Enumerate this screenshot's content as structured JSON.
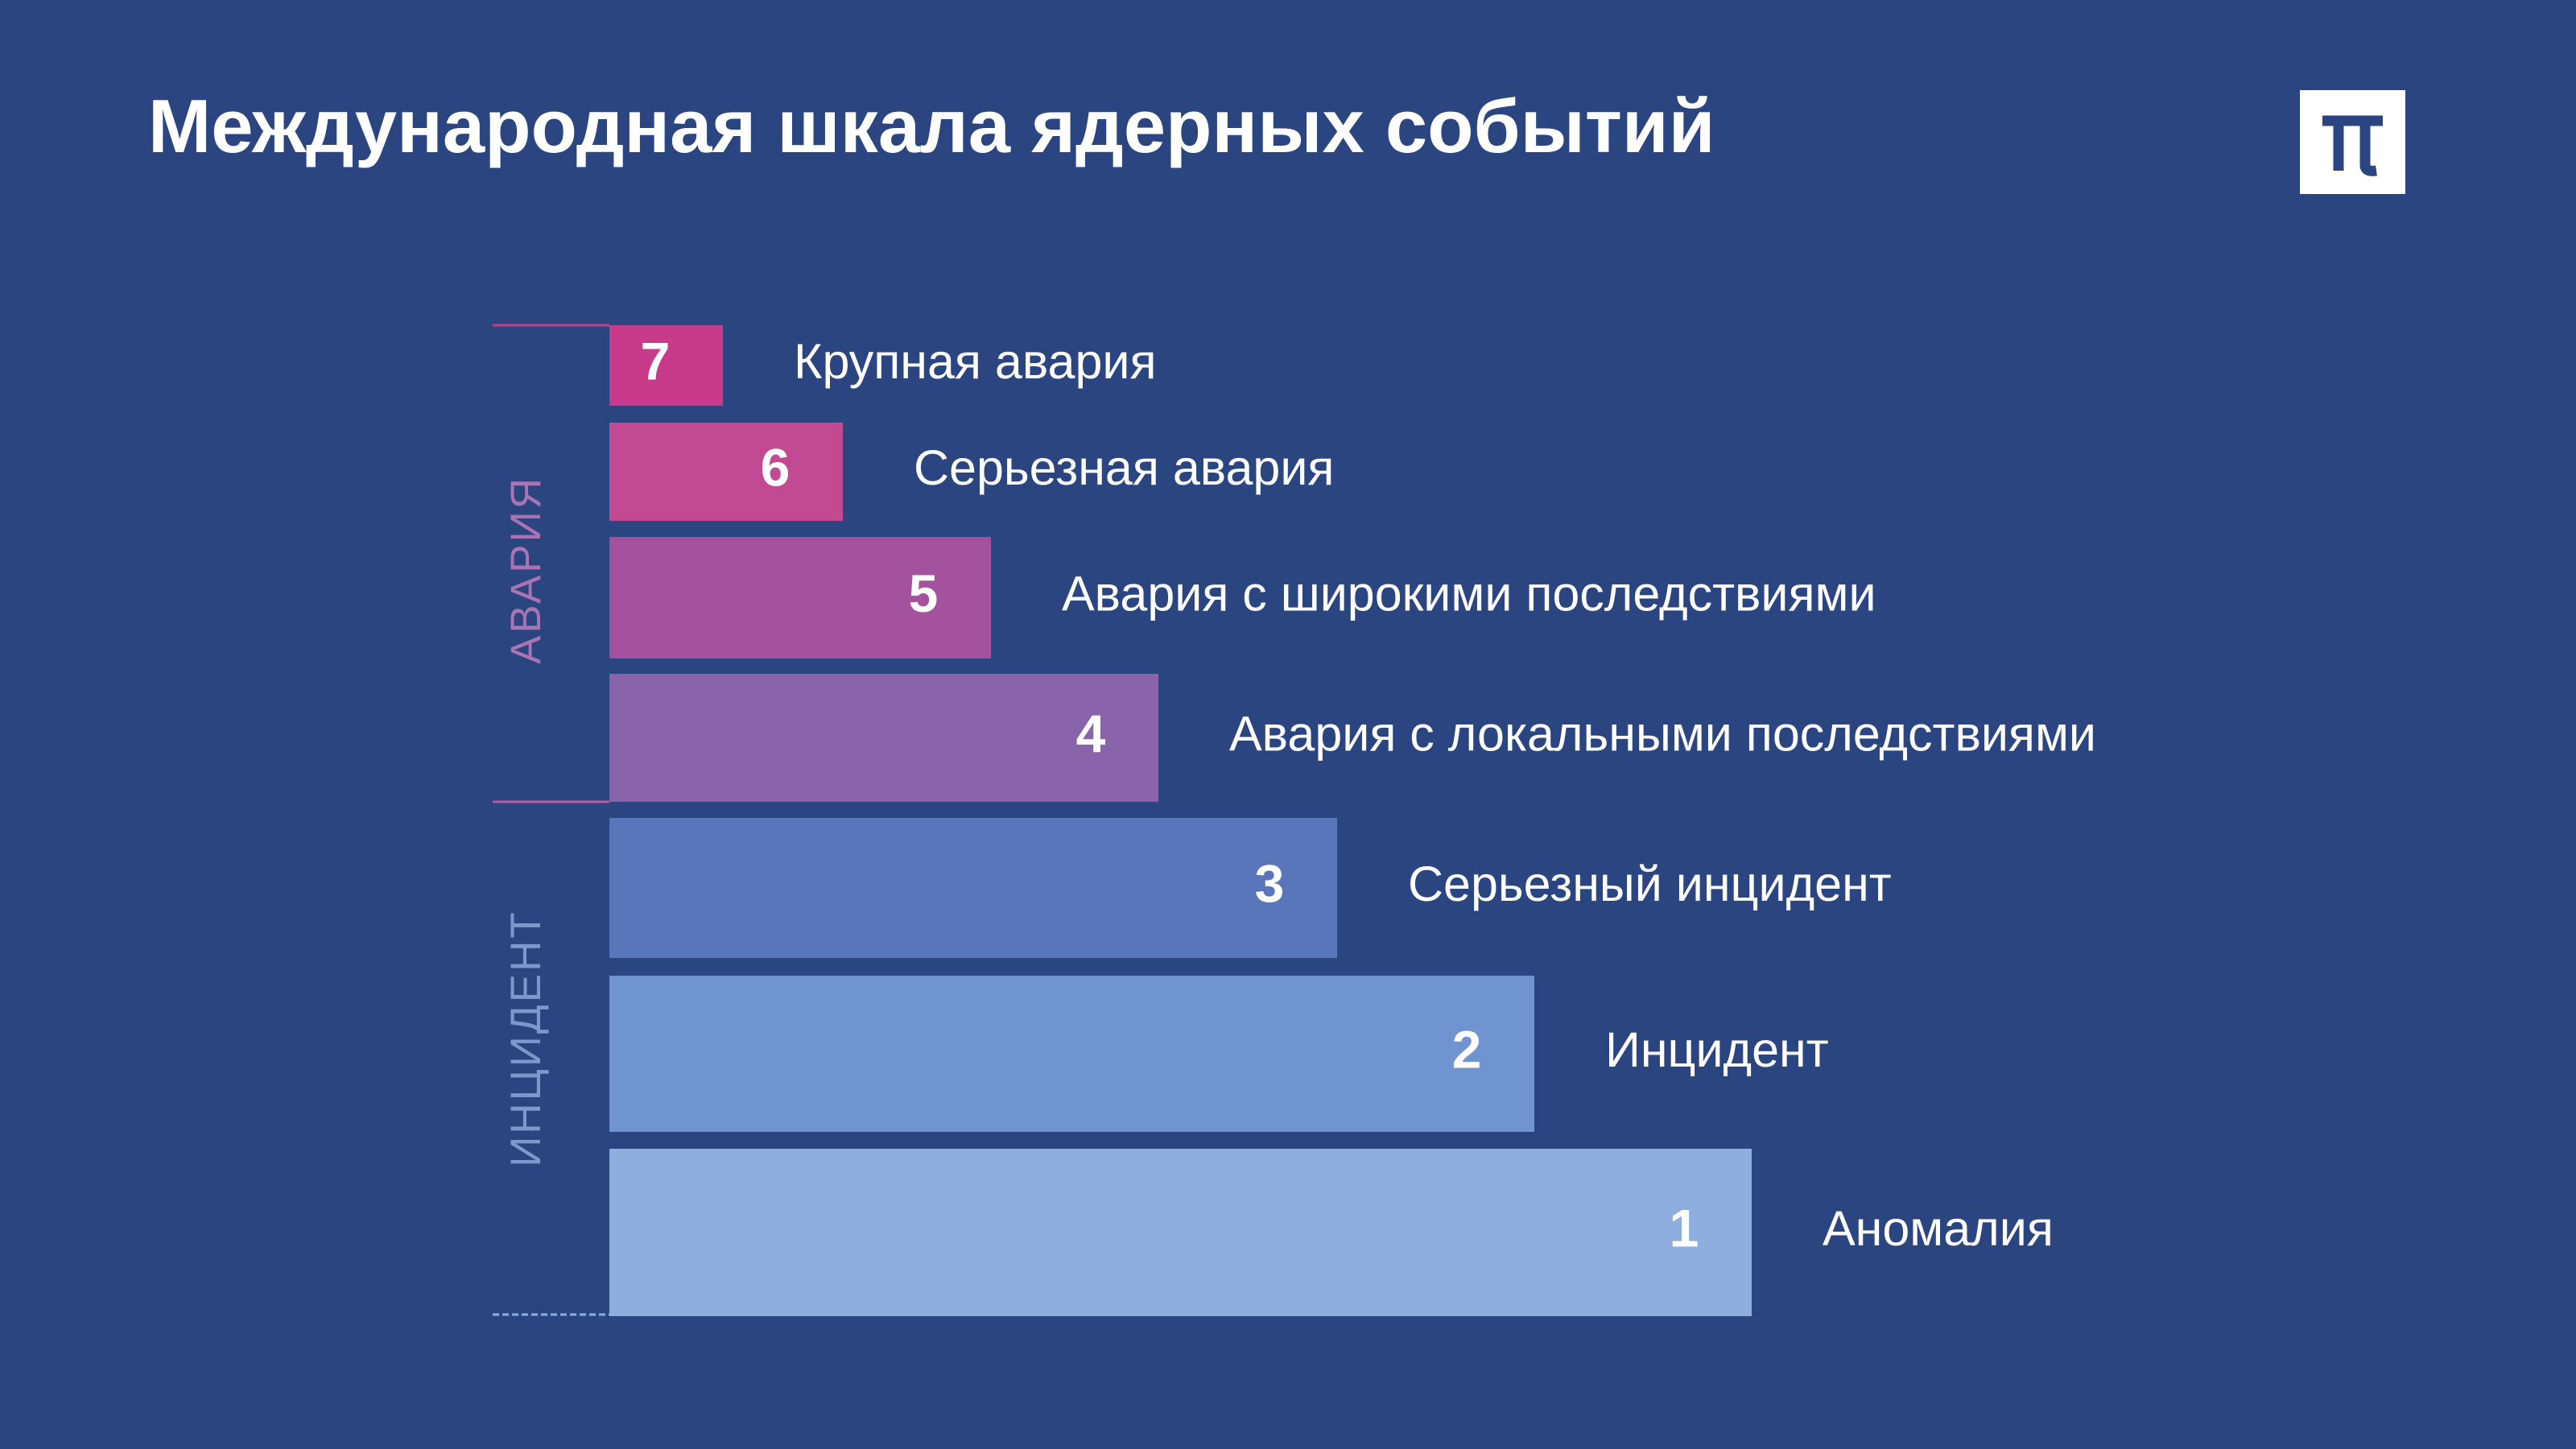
{
  "title": "Международная шкала ядерных событий",
  "groups": [
    "АВАРИЯ",
    "ИНЦИДЕНТ"
  ],
  "levels": [
    {
      "number": "7",
      "name": "Крупная авария"
    },
    {
      "number": "6",
      "name": "Серьезная авария"
    },
    {
      "number": "5",
      "name": "Авария с широкими последствиями"
    },
    {
      "number": "4",
      "name": "Авария с локальными последствиями"
    },
    {
      "number": "3",
      "name": "Серьезный инцидент"
    },
    {
      "number": "2",
      "name": "Инцидент"
    },
    {
      "number": "1",
      "name": "Аномалия"
    }
  ]
}
